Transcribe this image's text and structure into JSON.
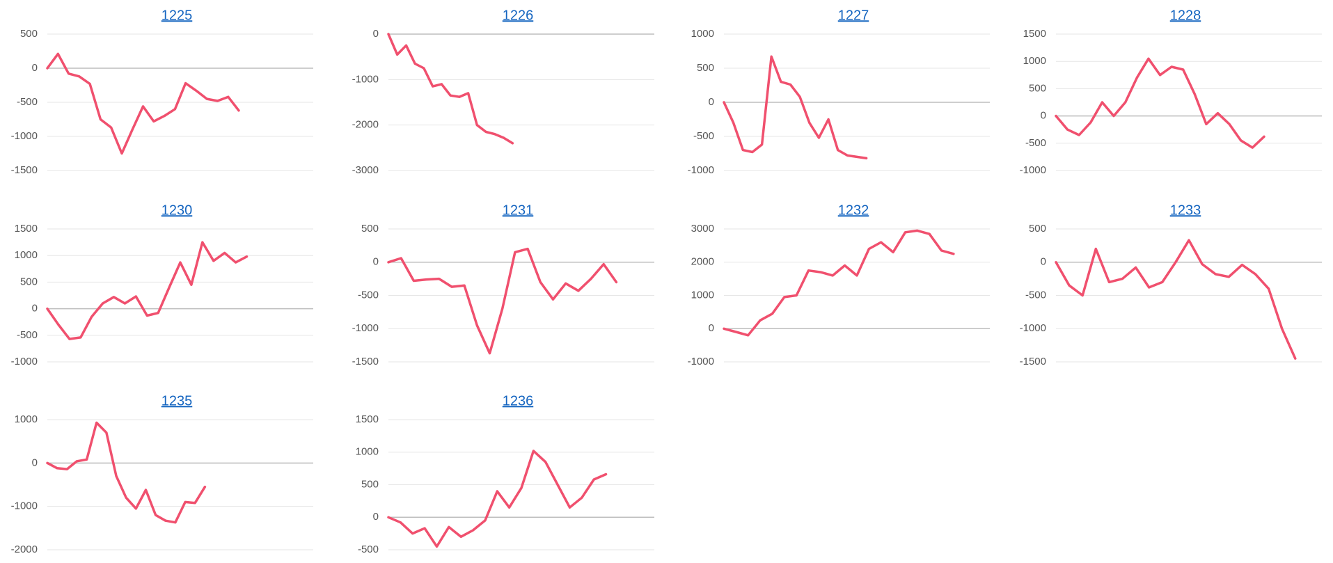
{
  "chart_data": [
    {
      "type": "line",
      "title": "1225",
      "color": "#f0506e",
      "grid": true,
      "ylim": [
        -1500,
        500
      ],
      "yticks": [
        -1500,
        -1000,
        -500,
        0,
        500
      ],
      "categories": [
        null,
        null,
        null,
        null,
        null,
        null,
        null,
        null,
        null,
        null,
        null,
        null,
        null,
        null,
        null,
        null,
        null,
        null,
        null,
        null,
        null,
        null,
        null,
        null,
        null,
        null
      ],
      "values": [
        0,
        210,
        -80,
        -120,
        -230,
        -750,
        -870,
        -1250,
        -900,
        -560,
        -780,
        -700,
        -600,
        -220,
        -330,
        -450,
        -480,
        -420,
        -620,
        null,
        null,
        null,
        null,
        null,
        null,
        null
      ]
    },
    {
      "type": "line",
      "title": "1226",
      "color": "#f0506e",
      "grid": true,
      "ylim": [
        -3000,
        0
      ],
      "yticks": [
        -3000,
        -2000,
        -1000,
        0
      ],
      "categories": [
        null,
        null,
        null,
        null,
        null,
        null,
        null,
        null,
        null,
        null,
        null,
        null,
        null,
        null,
        null,
        null,
        null,
        null,
        null,
        null,
        null,
        null,
        null,
        null,
        null,
        null,
        null,
        null,
        null,
        null,
        null
      ],
      "values": [
        0,
        -450,
        -250,
        -650,
        -750,
        -1150,
        -1100,
        -1350,
        -1380,
        -1300,
        -2000,
        -2150,
        -2200,
        -2280,
        -2400,
        null,
        null,
        null,
        null,
        null,
        null,
        null,
        null,
        null,
        null,
        null,
        null,
        null,
        null,
        null,
        null
      ]
    },
    {
      "type": "line",
      "title": "1227",
      "color": "#f0506e",
      "grid": true,
      "ylim": [
        -1000,
        1000
      ],
      "yticks": [
        -1000,
        -500,
        0,
        500,
        1000
      ],
      "categories": [
        null,
        null,
        null,
        null,
        null,
        null,
        null,
        null,
        null,
        null,
        null,
        null,
        null,
        null,
        null,
        null,
        null,
        null,
        null,
        null,
        null,
        null,
        null,
        null,
        null,
        null,
        null,
        null,
        null
      ],
      "values": [
        0,
        -300,
        -700,
        -730,
        -620,
        670,
        300,
        260,
        80,
        -300,
        -520,
        -250,
        -700,
        -780,
        -800,
        -820,
        null,
        null,
        null,
        null,
        null,
        null,
        null,
        null,
        null,
        null,
        null,
        null,
        null
      ]
    },
    {
      "type": "line",
      "title": "1228",
      "color": "#f0506e",
      "grid": true,
      "ylim": [
        -1000,
        1500
      ],
      "yticks": [
        -1000,
        -500,
        0,
        500,
        1000,
        1500
      ],
      "categories": [
        null,
        null,
        null,
        null,
        null,
        null,
        null,
        null,
        null,
        null,
        null,
        null,
        null,
        null,
        null,
        null,
        null,
        null,
        null,
        null,
        null,
        null,
        null,
        null
      ],
      "values": [
        0,
        -250,
        -350,
        -120,
        250,
        0,
        250,
        700,
        1050,
        750,
        900,
        850,
        400,
        -150,
        50,
        -150,
        -450,
        -580,
        -380,
        null,
        null,
        null,
        null,
        null
      ]
    },
    {
      "type": "line",
      "title": "1230",
      "color": "#f0506e",
      "grid": true,
      "ylim": [
        -1000,
        1500
      ],
      "yticks": [
        -1000,
        -500,
        0,
        500,
        1000,
        1500
      ],
      "categories": [
        null,
        null,
        null,
        null,
        null,
        null,
        null,
        null,
        null,
        null,
        null,
        null,
        null,
        null,
        null,
        null,
        null,
        null,
        null,
        null,
        null,
        null,
        null,
        null,
        null
      ],
      "values": [
        0,
        -300,
        -570,
        -540,
        -150,
        100,
        220,
        100,
        230,
        -130,
        -80,
        400,
        870,
        450,
        1250,
        900,
        1050,
        870,
        980,
        null,
        null,
        null,
        null,
        null,
        null
      ]
    },
    {
      "type": "line",
      "title": "1231",
      "color": "#f0506e",
      "grid": true,
      "ylim": [
        -1500,
        500
      ],
      "yticks": [
        -1500,
        -1000,
        -500,
        0,
        500
      ],
      "categories": [
        null,
        null,
        null,
        null,
        null,
        null,
        null,
        null,
        null,
        null,
        null,
        null,
        null,
        null,
        null,
        null,
        null,
        null,
        null,
        null,
        null,
        null
      ],
      "values": [
        0,
        60,
        -280,
        -260,
        -250,
        -370,
        -350,
        -950,
        -1370,
        -700,
        150,
        200,
        -300,
        -560,
        -320,
        -430,
        -250,
        -30,
        -300,
        null,
        null,
        null
      ]
    },
    {
      "type": "line",
      "title": "1232",
      "color": "#f0506e",
      "grid": true,
      "ylim": [
        -1000,
        3000
      ],
      "yticks": [
        -1000,
        0,
        1000,
        2000,
        3000
      ],
      "categories": [
        null,
        null,
        null,
        null,
        null,
        null,
        null,
        null,
        null,
        null,
        null,
        null,
        null,
        null,
        null,
        null,
        null,
        null,
        null,
        null,
        null,
        null,
        null
      ],
      "values": [
        0,
        -100,
        -200,
        250,
        450,
        950,
        1000,
        1750,
        1700,
        1600,
        1900,
        1600,
        2400,
        2600,
        2300,
        2900,
        2950,
        2850,
        2350,
        2250,
        null,
        null,
        null
      ]
    },
    {
      "type": "line",
      "title": "1233",
      "color": "#f0506e",
      "grid": true,
      "ylim": [
        -1500,
        500
      ],
      "yticks": [
        -1500,
        -1000,
        -500,
        0,
        500
      ],
      "categories": [
        null,
        null,
        null,
        null,
        null,
        null,
        null,
        null,
        null,
        null,
        null,
        null,
        null,
        null,
        null,
        null,
        null,
        null,
        null,
        null,
        null
      ],
      "values": [
        0,
        -350,
        -500,
        200,
        -300,
        -250,
        -80,
        -380,
        -300,
        0,
        330,
        -30,
        -180,
        -220,
        -40,
        -180,
        -400,
        -1000,
        -1450,
        null,
        null
      ]
    },
    {
      "type": "line",
      "title": "1235",
      "color": "#f0506e",
      "grid": true,
      "ylim": [
        -2000,
        1000
      ],
      "yticks": [
        -2000,
        -1000,
        0,
        1000
      ],
      "categories": [
        null,
        null,
        null,
        null,
        null,
        null,
        null,
        null,
        null,
        null,
        null,
        null,
        null,
        null,
        null,
        null,
        null,
        null,
        null,
        null,
        null,
        null,
        null,
        null,
        null,
        null,
        null,
        null
      ],
      "values": [
        0,
        -120,
        -140,
        40,
        80,
        930,
        700,
        -300,
        -800,
        -1050,
        -620,
        -1200,
        -1330,
        -1370,
        -900,
        -920,
        -550,
        null,
        null,
        null,
        null,
        null,
        null,
        null,
        null,
        null,
        null,
        null
      ]
    },
    {
      "type": "line",
      "title": "1236",
      "color": "#f0506e",
      "grid": true,
      "ylim": [
        -500,
        1500
      ],
      "yticks": [
        -500,
        0,
        500,
        1000,
        1500
      ],
      "categories": [
        null,
        null,
        null,
        null,
        null,
        null,
        null,
        null,
        null,
        null,
        null,
        null,
        null,
        null,
        null,
        null,
        null,
        null,
        null,
        null,
        null,
        null,
        null
      ],
      "values": [
        0,
        -80,
        -250,
        -170,
        -450,
        -150,
        -300,
        -200,
        -50,
        400,
        150,
        450,
        1020,
        850,
        500,
        150,
        300,
        580,
        660,
        null,
        null,
        null,
        null
      ]
    }
  ]
}
